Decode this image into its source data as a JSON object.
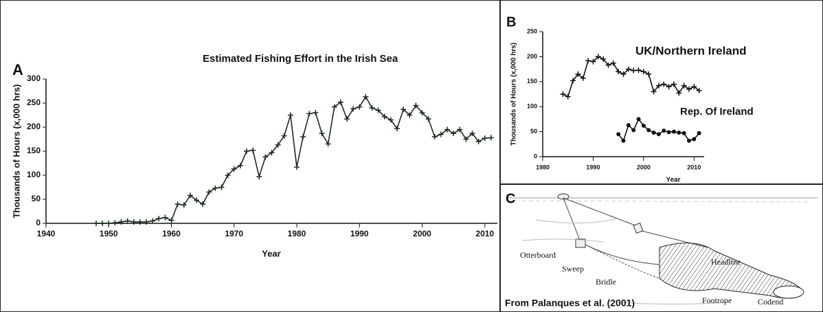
{
  "chart_data": [
    {
      "type": "line",
      "panel": "A",
      "title": "Estimated Fishing Effort in the Irish Sea",
      "xlabel": "Year",
      "ylabel": "Thousands of Hours (x,000 hrs)",
      "x": [
        1948,
        1949,
        1950,
        1951,
        1952,
        1953,
        1954,
        1955,
        1956,
        1957,
        1958,
        1959,
        1960,
        1961,
        1962,
        1963,
        1964,
        1965,
        1966,
        1967,
        1968,
        1969,
        1970,
        1971,
        1972,
        1973,
        1974,
        1975,
        1976,
        1977,
        1978,
        1979,
        1980,
        1981,
        1982,
        1983,
        1984,
        1985,
        1986,
        1987,
        1988,
        1989,
        1990,
        1991,
        1992,
        1993,
        1994,
        1995,
        1996,
        1997,
        1998,
        1999,
        2000,
        2001,
        2002,
        2003,
        2004,
        2005,
        2006,
        2007,
        2008,
        2009,
        2010,
        2011
      ],
      "series": [
        {
          "color": "#1a2a1a",
          "marker": "plus",
          "values": [
            0,
            0,
            0,
            1,
            3,
            5,
            3,
            3,
            3,
            5,
            10,
            12,
            6,
            40,
            38,
            58,
            48,
            40,
            65,
            73,
            75,
            100,
            113,
            120,
            150,
            152,
            97,
            138,
            147,
            163,
            182,
            225,
            117,
            180,
            228,
            230,
            187,
            165,
            242,
            252,
            217,
            238,
            242,
            263,
            240,
            235,
            222,
            215,
            197,
            237,
            225,
            245,
            230,
            217,
            180,
            185,
            195,
            187,
            195,
            175,
            187,
            170,
            177,
            178
          ]
        }
      ],
      "xlim": [
        1940,
        2012
      ],
      "xticks": [
        1940,
        1950,
        1960,
        1970,
        1980,
        1990,
        2000,
        2010
      ],
      "ylim": [
        0,
        300
      ],
      "yticks": [
        0,
        50,
        100,
        150,
        200,
        250,
        300
      ]
    },
    {
      "type": "line",
      "panel": "B",
      "xlabel": "Year",
      "ylabel": "Thousands of Hours (x,000 hrs)",
      "x": [
        1984,
        1985,
        1986,
        1987,
        1988,
        1989,
        1990,
        1991,
        1992,
        1993,
        1994,
        1995,
        1996,
        1997,
        1998,
        1999,
        2000,
        2001,
        2002,
        2003,
        2004,
        2005,
        2006,
        2007,
        2008,
        2009,
        2010,
        2011
      ],
      "series": [
        {
          "name": "UK/Northern Ireland",
          "color": "#111111",
          "marker": "plus",
          "values": [
            125,
            120,
            152,
            165,
            157,
            192,
            190,
            200,
            195,
            183,
            187,
            170,
            165,
            175,
            172,
            173,
            170,
            165,
            130,
            142,
            145,
            140,
            145,
            127,
            142,
            135,
            140,
            132
          ]
        },
        {
          "name": "Rep. Of Ireland",
          "color": "#111111",
          "marker": "dot",
          "values": [
            null,
            null,
            null,
            null,
            null,
            null,
            null,
            null,
            null,
            null,
            null,
            45,
            32,
            63,
            53,
            75,
            62,
            53,
            48,
            45,
            52,
            49,
            50,
            48,
            47,
            32,
            35,
            47
          ]
        }
      ],
      "xlim": [
        1980,
        2012
      ],
      "xticks": [
        1980,
        1990,
        2000,
        2010
      ],
      "ylim": [
        0,
        250
      ],
      "yticks": [
        0,
        50,
        100,
        150,
        200,
        250
      ]
    }
  ],
  "panel_c": {
    "panel": "C",
    "labels": [
      "Otterboard",
      "Sweep",
      "Bridle",
      "Headline",
      "Footrope",
      "Codend"
    ],
    "caption": "From Palanques et al. (2001)"
  }
}
